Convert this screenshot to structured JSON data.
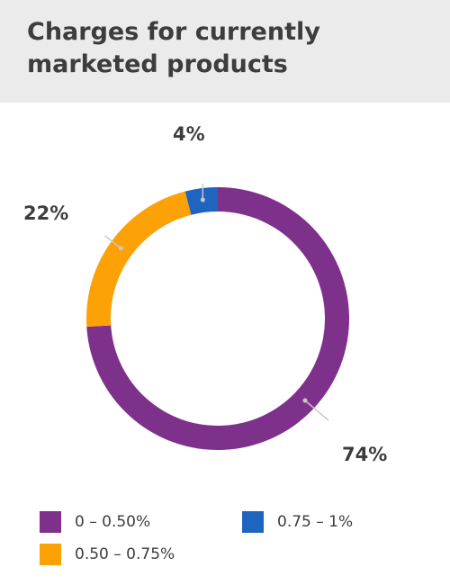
{
  "chart_data": {
    "type": "pie",
    "title": "Charges for currently marketed products",
    "donut": true,
    "slices": [
      {
        "label": "0 – 0.50%",
        "value": 74,
        "display": "74%",
        "color": "#7e318a"
      },
      {
        "label": "0.50 – 0.75%",
        "value": 22,
        "display": "22%",
        "color": "#fca106"
      },
      {
        "label": "0.75 – 1%",
        "value": 4,
        "display": "4%",
        "color": "#1f64bf"
      }
    ],
    "legend_position": "bottom"
  },
  "colors": {
    "title_background": "#ebebeb",
    "text": "#3d3d3d",
    "leader_line": "#c8c8c8"
  }
}
